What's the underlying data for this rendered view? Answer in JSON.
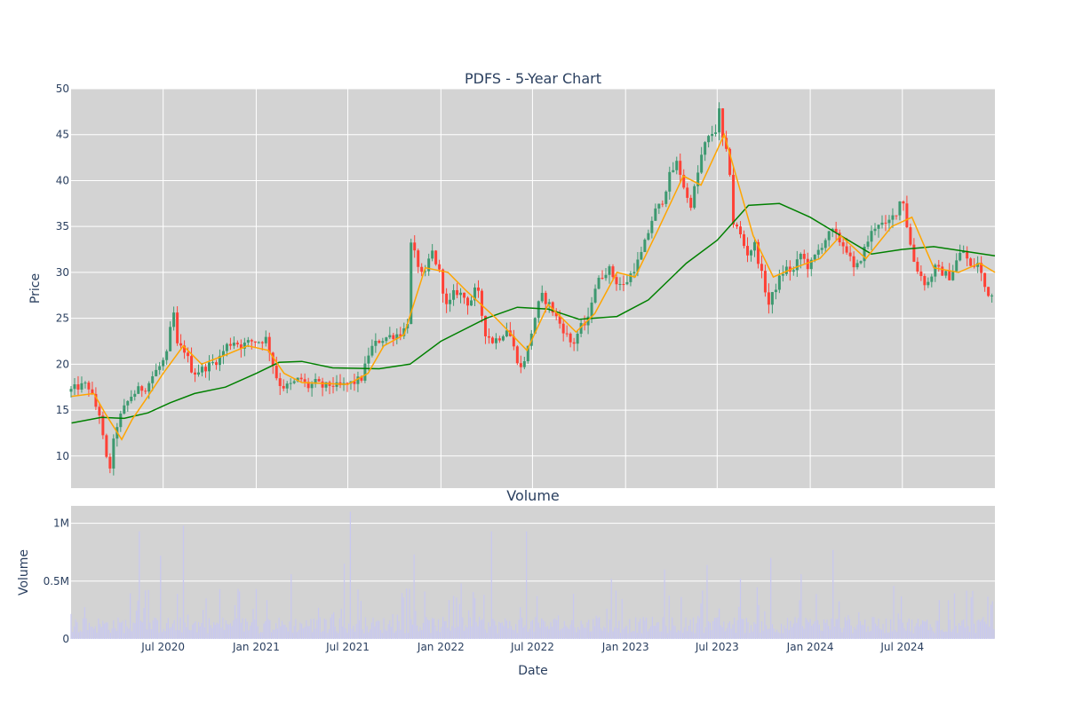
{
  "chart_data": [
    {
      "type": "candlestick",
      "title": "PDFS - 5-Year Chart",
      "ylabel": "Price",
      "ylim": [
        6.5,
        50
      ],
      "y_ticks": [
        10,
        15,
        20,
        25,
        30,
        35,
        40,
        45,
        50
      ],
      "x_range": [
        "2020-01-01",
        "2024-12-31"
      ],
      "grid": true,
      "colors": {
        "plot_bg": "#d3d3d3",
        "increasing": "#3d9970",
        "decreasing": "#ff4136",
        "grid": "#ffffff"
      },
      "price_path": [
        [
          "2020-01-02",
          17.0
        ],
        [
          "2020-01-20",
          17.5
        ],
        [
          "2020-02-10",
          17.8
        ],
        [
          "2020-02-25",
          15.5
        ],
        [
          "2020-03-05",
          14.5
        ],
        [
          "2020-03-12",
          11.5
        ],
        [
          "2020-03-20",
          9.0
        ],
        [
          "2020-03-25",
          8.8
        ],
        [
          "2020-04-05",
          13.0
        ],
        [
          "2020-04-20",
          15.0
        ],
        [
          "2020-05-05",
          16.5
        ],
        [
          "2020-05-20",
          17.2
        ],
        [
          "2020-06-05",
          17.5
        ],
        [
          "2020-06-20",
          19.0
        ],
        [
          "2020-07-05",
          20.0
        ],
        [
          "2020-07-15",
          21.0
        ],
        [
          "2020-07-28",
          26.0
        ],
        [
          "2020-08-05",
          22.0
        ],
        [
          "2020-08-20",
          21.5
        ],
        [
          "2020-09-05",
          19.0
        ],
        [
          "2020-09-25",
          19.5
        ],
        [
          "2020-10-10",
          20.0
        ],
        [
          "2020-10-25",
          20.5
        ],
        [
          "2020-11-10",
          22.0
        ],
        [
          "2020-11-25",
          22.5
        ],
        [
          "2020-12-10",
          22.0
        ],
        [
          "2020-12-28",
          22.5
        ],
        [
          "2021-01-15",
          22.5
        ],
        [
          "2021-01-28",
          22.8
        ],
        [
          "2021-02-10",
          20.0
        ],
        [
          "2021-02-20",
          18.0
        ],
        [
          "2021-03-05",
          17.5
        ],
        [
          "2021-03-20",
          17.8
        ],
        [
          "2021-04-05",
          18.5
        ],
        [
          "2021-04-20",
          17.5
        ],
        [
          "2021-05-05",
          18.0
        ],
        [
          "2021-05-20",
          17.5
        ],
        [
          "2021-06-05",
          17.8
        ],
        [
          "2021-06-20",
          17.5
        ],
        [
          "2021-07-05",
          17.8
        ],
        [
          "2021-07-20",
          18.0
        ],
        [
          "2021-08-05",
          18.5
        ],
        [
          "2021-08-20",
          21.5
        ],
        [
          "2021-09-05",
          22.5
        ],
        [
          "2021-09-25",
          23.0
        ],
        [
          "2021-10-10",
          23.2
        ],
        [
          "2021-10-25",
          23.5
        ],
        [
          "2021-11-05",
          25.0
        ],
        [
          "2021-11-10",
          33.0
        ],
        [
          "2021-11-20",
          31.5
        ],
        [
          "2021-12-05",
          29.0
        ],
        [
          "2021-12-20",
          32.5
        ],
        [
          "2022-01-05",
          30.0
        ],
        [
          "2022-01-20",
          26.0
        ],
        [
          "2022-02-05",
          28.0
        ],
        [
          "2022-02-20",
          27.5
        ],
        [
          "2022-03-05",
          26.5
        ],
        [
          "2022-03-20",
          28.5
        ],
        [
          "2022-04-05",
          23.5
        ],
        [
          "2022-04-20",
          22.5
        ],
        [
          "2022-05-05",
          23.0
        ],
        [
          "2022-05-20",
          24.0
        ],
        [
          "2022-06-05",
          21.0
        ],
        [
          "2022-06-15",
          19.5
        ],
        [
          "2022-06-28",
          21.5
        ],
        [
          "2022-07-10",
          24.5
        ],
        [
          "2022-07-25",
          27.5
        ],
        [
          "2022-08-10",
          26.5
        ],
        [
          "2022-08-25",
          25.0
        ],
        [
          "2022-09-10",
          23.5
        ],
        [
          "2022-09-25",
          22.0
        ],
        [
          "2022-10-10",
          24.0
        ],
        [
          "2022-10-25",
          24.5
        ],
        [
          "2022-11-05",
          28.0
        ],
        [
          "2022-11-20",
          29.5
        ],
        [
          "2022-12-05",
          30.5
        ],
        [
          "2022-12-20",
          29.0
        ],
        [
          "2023-01-05",
          28.5
        ],
        [
          "2023-01-20",
          30.0
        ],
        [
          "2023-02-05",
          31.5
        ],
        [
          "2023-02-20",
          34.0
        ],
        [
          "2023-03-05",
          36.5
        ],
        [
          "2023-03-20",
          37.5
        ],
        [
          "2023-04-05",
          40.5
        ],
        [
          "2023-04-20",
          42.0
        ],
        [
          "2023-05-05",
          39.0
        ],
        [
          "2023-05-15",
          37.0
        ],
        [
          "2023-05-28",
          40.0
        ],
        [
          "2023-06-10",
          43.5
        ],
        [
          "2023-06-25",
          45.0
        ],
        [
          "2023-07-05",
          45.5
        ],
        [
          "2023-07-12",
          47.5
        ],
        [
          "2023-07-20",
          44.0
        ],
        [
          "2023-08-01",
          42.0
        ],
        [
          "2023-08-07",
          35.5
        ],
        [
          "2023-08-20",
          34.5
        ],
        [
          "2023-09-05",
          32.0
        ],
        [
          "2023-09-20",
          33.0
        ],
        [
          "2023-10-05",
          29.5
        ],
        [
          "2023-10-18",
          26.5
        ],
        [
          "2023-11-05",
          29.0
        ],
        [
          "2023-11-20",
          30.5
        ],
        [
          "2023-12-05",
          30.0
        ],
        [
          "2023-12-20",
          32.0
        ],
        [
          "2024-01-05",
          30.5
        ],
        [
          "2024-01-20",
          32.0
        ],
        [
          "2024-02-05",
          33.5
        ],
        [
          "2024-02-20",
          34.5
        ],
        [
          "2024-03-05",
          33.5
        ],
        [
          "2024-03-20",
          32.5
        ],
        [
          "2024-04-05",
          30.0
        ],
        [
          "2024-04-20",
          32.0
        ],
        [
          "2024-05-05",
          34.0
        ],
        [
          "2024-05-20",
          35.5
        ],
        [
          "2024-06-05",
          35.0
        ],
        [
          "2024-06-25",
          36.5
        ],
        [
          "2024-07-08",
          38.5
        ],
        [
          "2024-07-20",
          34.0
        ],
        [
          "2024-08-01",
          31.0
        ],
        [
          "2024-08-10",
          30.0
        ],
        [
          "2024-08-25",
          28.5
        ],
        [
          "2024-09-10",
          30.5
        ],
        [
          "2024-09-25",
          30.0
        ],
        [
          "2024-10-10",
          29.5
        ],
        [
          "2024-10-25",
          31.5
        ],
        [
          "2024-11-05",
          32.5
        ],
        [
          "2024-11-20",
          30.5
        ],
        [
          "2024-12-05",
          31.0
        ],
        [
          "2024-12-20",
          28.0
        ],
        [
          "2024-12-31",
          27.5
        ]
      ],
      "ma_short": [
        [
          "2020-01-02",
          16.5
        ],
        [
          "2020-02-15",
          16.8
        ],
        [
          "2020-03-10",
          14.5
        ],
        [
          "2020-04-10",
          11.8
        ],
        [
          "2020-05-01",
          14.0
        ],
        [
          "2020-06-01",
          16.5
        ],
        [
          "2020-07-01",
          19.0
        ],
        [
          "2020-08-10",
          22.0
        ],
        [
          "2020-09-15",
          20.0
        ],
        [
          "2020-11-01",
          21.0
        ],
        [
          "2020-12-15",
          22.0
        ],
        [
          "2021-01-25",
          21.5
        ],
        [
          "2021-02-25",
          19.0
        ],
        [
          "2021-04-01",
          18.0
        ],
        [
          "2021-07-01",
          17.8
        ],
        [
          "2021-08-10",
          19.0
        ],
        [
          "2021-09-10",
          22.0
        ],
        [
          "2021-10-20",
          23.2
        ],
        [
          "2021-12-01",
          30.5
        ],
        [
          "2022-01-15",
          30.0
        ],
        [
          "2022-02-20",
          28.0
        ],
        [
          "2022-04-20",
          25.0
        ],
        [
          "2022-06-20",
          21.5
        ],
        [
          "2022-08-01",
          26.5
        ],
        [
          "2022-09-25",
          23.5
        ],
        [
          "2022-11-01",
          25.5
        ],
        [
          "2022-12-15",
          30.0
        ],
        [
          "2023-01-20",
          29.5
        ],
        [
          "2023-03-05",
          34.5
        ],
        [
          "2023-04-25",
          40.5
        ],
        [
          "2023-05-30",
          39.5
        ],
        [
          "2023-07-15",
          45.0
        ],
        [
          "2023-08-10",
          40.0
        ],
        [
          "2023-09-10",
          34.0
        ],
        [
          "2023-10-20",
          29.5
        ],
        [
          "2023-12-01",
          30.5
        ],
        [
          "2024-01-20",
          31.5
        ],
        [
          "2024-03-01",
          34.0
        ],
        [
          "2024-04-20",
          31.5
        ],
        [
          "2024-06-10",
          35.0
        ],
        [
          "2024-07-20",
          36.0
        ],
        [
          "2024-09-01",
          30.5
        ],
        [
          "2024-10-20",
          30.0
        ],
        [
          "2024-12-01",
          31.0
        ],
        [
          "2024-12-31",
          30.0
        ]
      ],
      "ma_long": [
        [
          "2020-01-02",
          13.6
        ],
        [
          "2020-03-01",
          14.2
        ],
        [
          "2020-04-15",
          14.1
        ],
        [
          "2020-06-01",
          14.7
        ],
        [
          "2020-07-15",
          15.8
        ],
        [
          "2020-09-01",
          16.8
        ],
        [
          "2020-11-01",
          17.5
        ],
        [
          "2021-01-01",
          19.0
        ],
        [
          "2021-02-15",
          20.2
        ],
        [
          "2021-04-01",
          20.3
        ],
        [
          "2021-06-01",
          19.6
        ],
        [
          "2021-09-01",
          19.5
        ],
        [
          "2021-11-01",
          20.0
        ],
        [
          "2022-01-01",
          22.5
        ],
        [
          "2022-04-01",
          25.0
        ],
        [
          "2022-06-01",
          26.2
        ],
        [
          "2022-08-01",
          26.0
        ],
        [
          "2022-10-01",
          24.9
        ],
        [
          "2022-12-15",
          25.2
        ],
        [
          "2023-02-15",
          27.0
        ],
        [
          "2023-05-01",
          31.0
        ],
        [
          "2023-07-01",
          33.5
        ],
        [
          "2023-09-01",
          37.3
        ],
        [
          "2023-11-01",
          37.5
        ],
        [
          "2024-01-01",
          36.0
        ],
        [
          "2024-03-01",
          34.0
        ],
        [
          "2024-05-01",
          32.0
        ],
        [
          "2024-07-01",
          32.5
        ],
        [
          "2024-09-01",
          32.8
        ],
        [
          "2024-12-31",
          31.8
        ]
      ]
    },
    {
      "type": "bar",
      "title": "Volume",
      "xlabel": "Date",
      "ylabel": "Volume",
      "ylim": [
        0,
        1150000
      ],
      "y_ticks": [
        0,
        500000,
        1000000
      ],
      "y_tick_labels": [
        "0",
        "0.5M",
        "1M"
      ],
      "x_ticks": [
        "2020-07-01",
        "2021-01-01",
        "2021-07-01",
        "2022-01-01",
        "2022-07-01",
        "2023-01-01",
        "2023-07-01",
        "2024-01-01",
        "2024-07-01"
      ],
      "x_tick_labels": [
        "Jul 2020",
        "Jan 2021",
        "Jul 2021",
        "Jan 2022",
        "Jul 2022",
        "Jan 2023",
        "Jul 2023",
        "Jan 2024",
        "Jul 2024"
      ],
      "colors": {
        "plot_bg": "#d3d3d3",
        "bar": "#c8c8f0"
      },
      "baseline": 120000,
      "spikes": [
        [
          "2020-05-15",
          930000
        ],
        [
          "2020-06-25",
          720000
        ],
        [
          "2020-08-10",
          980000
        ],
        [
          "2021-03-10",
          560000
        ],
        [
          "2021-06-25",
          650000
        ],
        [
          "2021-07-05",
          1100000
        ],
        [
          "2021-11-10",
          730000
        ],
        [
          "2022-02-10",
          480000
        ],
        [
          "2022-04-10",
          930000
        ],
        [
          "2022-06-20",
          930000
        ],
        [
          "2022-12-05",
          520000
        ],
        [
          "2023-03-20",
          600000
        ],
        [
          "2023-06-10",
          640000
        ],
        [
          "2023-08-15",
          520000
        ],
        [
          "2023-10-15",
          700000
        ],
        [
          "2023-12-15",
          560000
        ],
        [
          "2024-02-15",
          770000
        ],
        [
          "2024-06-15",
          460000
        ],
        [
          "2024-11-15",
          360000
        ]
      ]
    }
  ]
}
